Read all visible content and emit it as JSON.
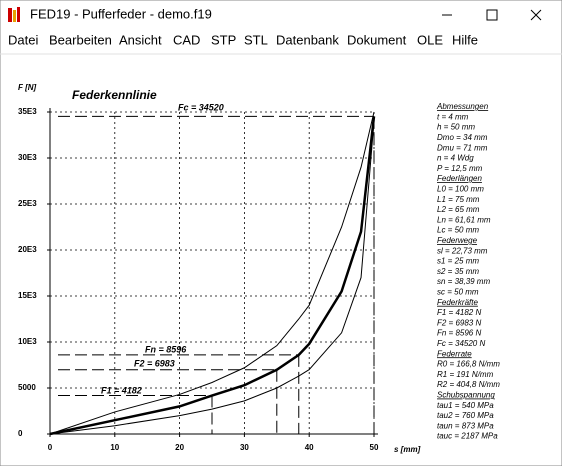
{
  "window": {
    "title": "FED19  -  Pufferfeder  -  demo.f19"
  },
  "menu": [
    "Datei",
    "Bearbeiten",
    "Ansicht",
    "CAD",
    "STP",
    "STL",
    "Datenbank",
    "Dokument",
    "OLE",
    "Hilfe"
  ],
  "chart_data": {
    "type": "line",
    "title": "Federkennlinie",
    "y_label": "F [N]",
    "x_label": "s [mm]",
    "x": [
      0,
      10,
      20,
      25,
      30,
      35,
      38.39,
      40,
      45,
      48,
      50
    ],
    "series": [
      {
        "color": "#000000",
        "values": [
          0,
          1500,
          3000,
          4182,
          5300,
          6983,
          8596,
          9800,
          15500,
          22000,
          34520
        ]
      },
      {
        "color": "#000000",
        "values": [
          0,
          2400,
          4300,
          5600,
          7200,
          9600,
          12500,
          14000,
          22500,
          29000,
          35000
        ]
      },
      {
        "color": "#000000",
        "values": [
          0,
          900,
          2000,
          2700,
          3600,
          5000,
          6300,
          7000,
          11000,
          17000,
          34000
        ]
      }
    ],
    "xlim": [
      0,
      50
    ],
    "ylim": [
      0,
      35000
    ],
    "xticks": [
      0,
      10,
      20,
      30,
      40,
      50
    ],
    "yticks": [
      0,
      5000,
      {
        "value": 10000,
        "label": "10E3"
      },
      {
        "value": 15000,
        "label": "15E3"
      },
      {
        "value": 20000,
        "label": "20E3"
      },
      {
        "value": 25000,
        "label": "25E3"
      },
      {
        "value": 30000,
        "label": "30E3"
      },
      {
        "value": 35000,
        "label": "35E3"
      }
    ],
    "grid": true,
    "annotations": [
      {
        "text": "Fc = 34520",
        "x": 50,
        "y": 34520
      },
      {
        "text": "Fn = 8596",
        "x": 38.39,
        "y": 8596
      },
      {
        "text": "F2 = 6983",
        "x": 35,
        "y": 6983
      },
      {
        "text": "F1 = 4182",
        "x": 25,
        "y": 4182
      }
    ]
  },
  "panel": {
    "sections": [
      {
        "heading": "Abmessungen",
        "items": [
          "t = 4 mm",
          "h = 50 mm",
          "Dmo = 34 mm",
          "Dmu = 71 mm",
          "n = 4 Wdg",
          "P = 12,5 mm"
        ]
      },
      {
        "heading": "Federlängen",
        "items": [
          "L0 = 100 mm",
          "L1 = 75 mm",
          "L2 = 65 mm",
          "Ln = 61,61 mm",
          "Lc = 50 mm"
        ]
      },
      {
        "heading": "Federwege",
        "items": [
          "sl = 22,73 mm",
          "s1 = 25 mm",
          "s2 = 35 mm",
          "sn = 38,39 mm",
          "sc = 50 mm"
        ]
      },
      {
        "heading": "Federkräfte",
        "items": [
          "F1 = 4182 N",
          "F2 = 6983 N",
          "Fn = 8596 N",
          "Fc = 34520 N"
        ]
      },
      {
        "heading": "Federrate",
        "items": [
          "R0 = 166,8 N/mm",
          "R1 = 191 N/mm",
          "R2 = 404,8 N/mm"
        ]
      },
      {
        "heading": "Schubspannung",
        "items": [
          "tau1 = 540 MPa",
          "tau2 = 760 MPa",
          "taun = 873 MPa",
          "tauc = 2187 MPa"
        ]
      }
    ]
  }
}
